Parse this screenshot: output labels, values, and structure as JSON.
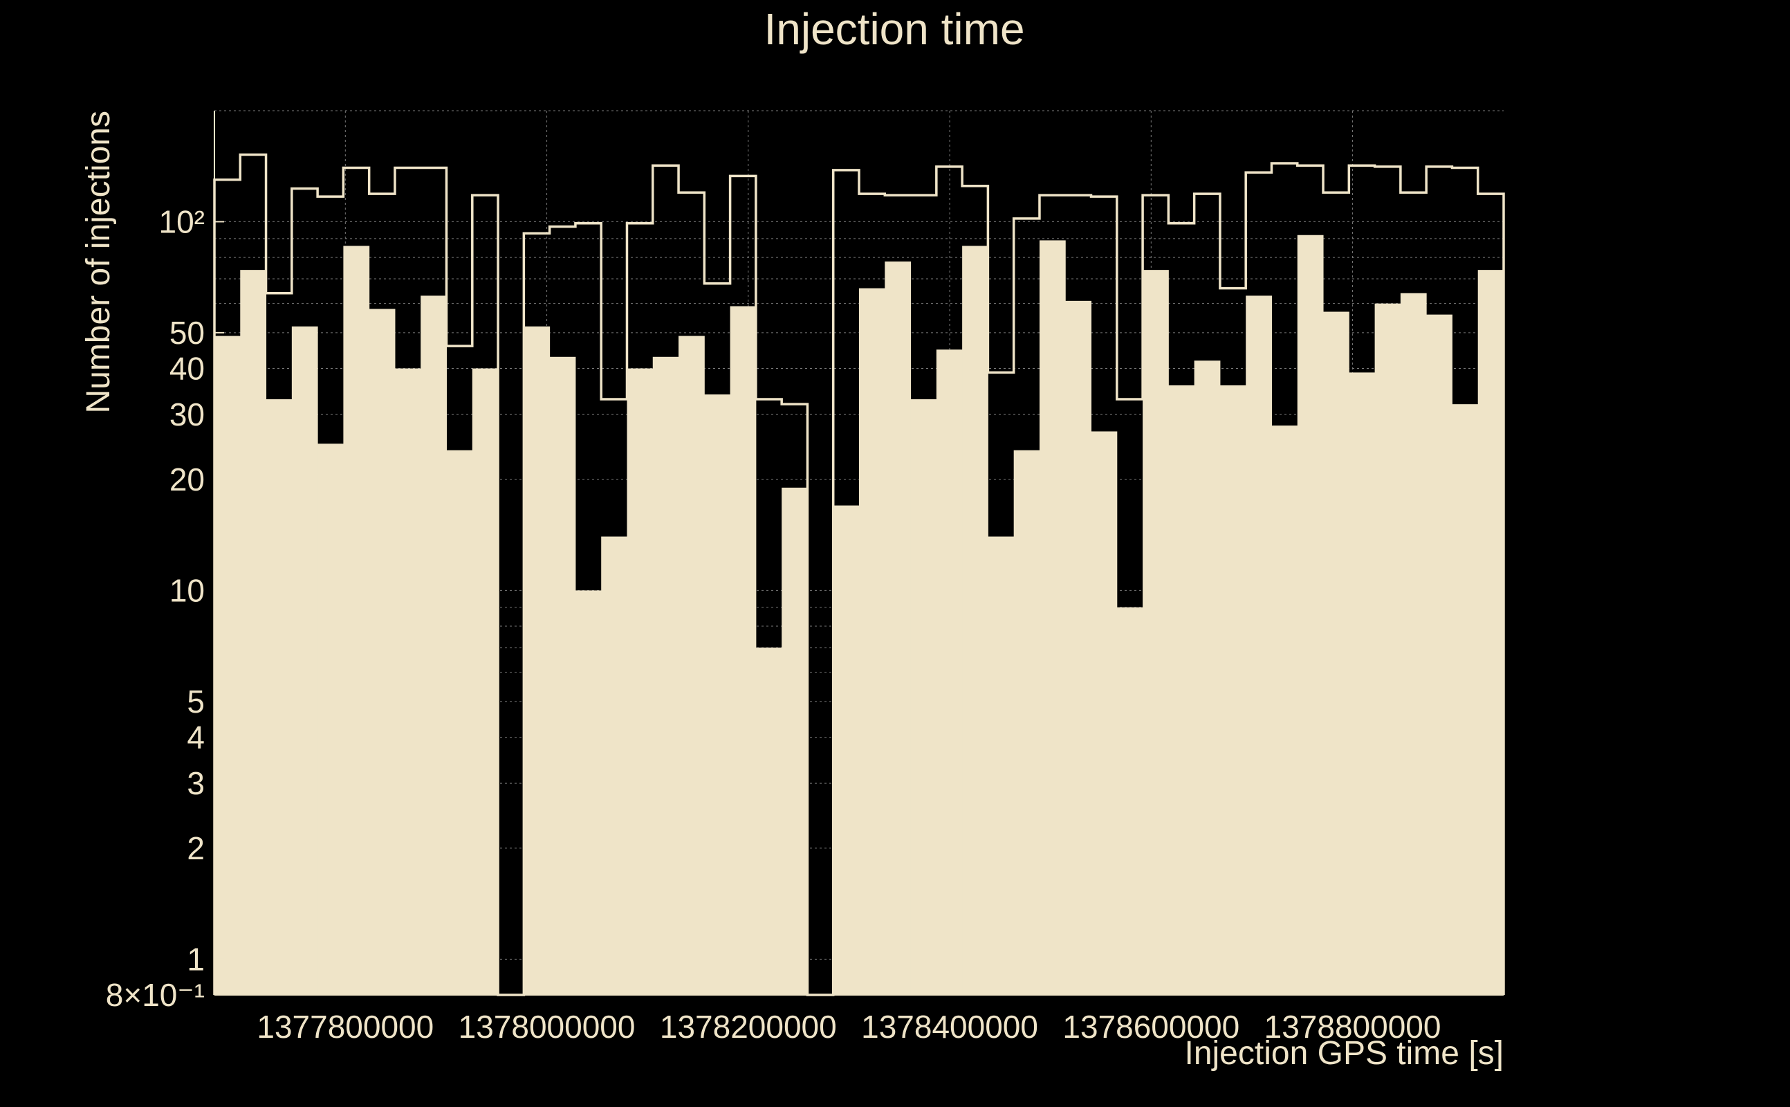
{
  "chart_data": {
    "type": "bar",
    "title": "Injection time",
    "xlabel": "Injection GPS time [s]",
    "ylabel": "Number of injections",
    "x_scale": "linear",
    "y_scale": "log",
    "xlim": [
      1377670000,
      1378950000
    ],
    "ylim": [
      0.8,
      200
    ],
    "bin_width": 25600,
    "bin_edges_start": 1377670000,
    "grid": true,
    "x_ticks": [
      {
        "value": 1377800000,
        "label": "1377800000"
      },
      {
        "value": 1378000000,
        "label": "1378000000"
      },
      {
        "value": 1378200000,
        "label": "1378200000"
      },
      {
        "value": 1378400000,
        "label": "1378400000"
      },
      {
        "value": 1378600000,
        "label": "1378600000"
      },
      {
        "value": 1378800000,
        "label": "1378800000"
      }
    ],
    "y_ticks": [
      {
        "value": 0.8,
        "label": "8×10⁻¹"
      },
      {
        "value": 1,
        "label": "1"
      },
      {
        "value": 2,
        "label": "2"
      },
      {
        "value": 3,
        "label": "3"
      },
      {
        "value": 4,
        "label": "4"
      },
      {
        "value": 5,
        "label": "5"
      },
      {
        "value": 10,
        "label": "10"
      },
      {
        "value": 20,
        "label": "20"
      },
      {
        "value": 30,
        "label": "30"
      },
      {
        "value": 40,
        "label": "40"
      },
      {
        "value": 50,
        "label": "50"
      },
      {
        "value": 100,
        "label": "10²"
      }
    ],
    "series": [
      {
        "style": "step-outline",
        "color": "#efe4c8",
        "values": [
          130,
          152,
          64,
          123,
          117,
          140,
          119,
          140,
          140,
          46,
          118,
          0,
          93,
          97,
          99,
          33,
          99,
          142,
          120,
          68,
          133,
          33,
          32,
          0,
          138,
          119,
          118,
          118,
          141,
          125,
          39,
          102,
          118,
          118,
          117,
          33,
          118,
          99,
          119,
          66,
          136,
          144,
          142,
          120,
          142,
          141,
          120,
          141,
          140,
          119
        ]
      },
      {
        "style": "filled",
        "color": "#efe4c8",
        "values": [
          49,
          74,
          33,
          52,
          25,
          86,
          58,
          40,
          63,
          24,
          40,
          0,
          52,
          43,
          10,
          14,
          40,
          43,
          49,
          34,
          59,
          7,
          19,
          0,
          17,
          66,
          78,
          33,
          45,
          86,
          14,
          24,
          89,
          61,
          27,
          9,
          74,
          36,
          42,
          36,
          63,
          28,
          92,
          57,
          39,
          60,
          64,
          56,
          32,
          74
        ]
      }
    ]
  }
}
